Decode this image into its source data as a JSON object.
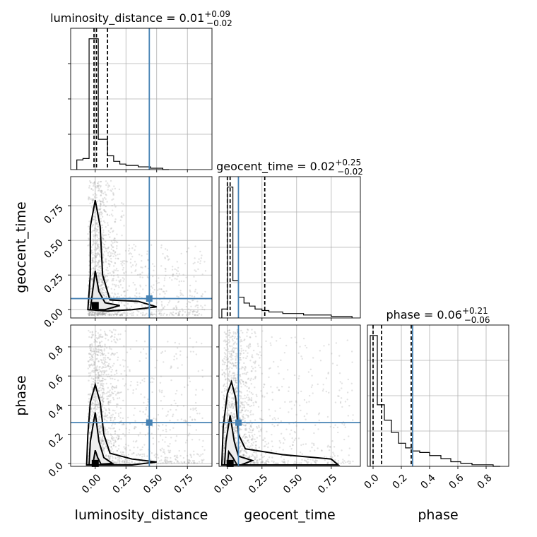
{
  "chart_data": [
    {
      "type": "histogram",
      "parameter": "luminosity_distance",
      "title": "luminosity_distance = 0.01",
      "title_sup": "+0.09",
      "title_sub": "−0.02",
      "xlim": [
        -0.2,
        0.95
      ],
      "bin_edges": [
        -0.15,
        -0.1,
        -0.05,
        -0.0125,
        0.025,
        0.0625,
        0.1,
        0.15,
        0.2,
        0.25,
        0.3,
        0.35,
        0.4,
        0.45,
        0.5,
        0.55,
        0.6
      ],
      "counts": [
        7,
        8,
        95,
        95,
        22,
        22,
        10,
        6,
        4,
        3,
        3,
        2,
        2,
        1,
        1,
        0
      ],
      "quantiles": [
        -0.01,
        0.01,
        0.1
      ],
      "truth": 0.44
    },
    {
      "type": "scatter-contour",
      "xparam": "luminosity_distance",
      "yparam": "geocent_time",
      "xlim": [
        -0.2,
        0.95
      ],
      "ylim": [
        -0.06,
        0.96
      ],
      "yticks": [
        0.0,
        0.25,
        0.5,
        0.75
      ],
      "ytick_labels": [
        "0.00",
        "0.25",
        "0.50",
        "0.75"
      ],
      "ylabel": "geocent_time",
      "truth": [
        0.44,
        0.08
      ],
      "peak": [
        0.0,
        0.03
      ]
    },
    {
      "type": "histogram",
      "parameter": "geocent_time",
      "title": "geocent_time = 0.02",
      "title_sup": "+0.25",
      "title_sub": "−0.02",
      "xlim": [
        -0.06,
        0.96
      ],
      "bin_edges": [
        -0.04,
        0.0,
        0.04,
        0.08,
        0.12,
        0.16,
        0.2,
        0.25,
        0.3,
        0.35,
        0.4,
        0.45,
        0.5,
        0.55,
        0.6,
        0.65,
        0.7,
        0.75,
        0.8,
        0.9
      ],
      "counts": [
        6,
        88,
        25,
        14,
        10,
        8,
        6,
        5,
        4,
        4,
        3,
        3,
        3,
        2,
        2,
        2,
        2,
        1,
        1
      ],
      "quantiles": [
        0.0,
        0.02,
        0.27
      ],
      "truth": 0.08
    },
    {
      "type": "scatter-contour",
      "xparam": "luminosity_distance",
      "yparam": "phase",
      "xlim": [
        -0.2,
        0.95
      ],
      "ylim": [
        -0.02,
        0.95
      ],
      "xticks": [
        0.0,
        0.25,
        0.5,
        0.75
      ],
      "xtick_labels": [
        "0.00",
        "0.25",
        "0.50",
        "0.75"
      ],
      "yticks": [
        0.0,
        0.2,
        0.4,
        0.6,
        0.8
      ],
      "ytick_labels": [
        "0.0",
        "0.2",
        "0.4",
        "0.6",
        "0.8"
      ],
      "xlabel": "luminosity_distance",
      "ylabel": "phase",
      "truth": [
        0.44,
        0.28
      ],
      "peak": [
        0.0,
        0.0
      ]
    },
    {
      "type": "scatter-contour",
      "xparam": "geocent_time",
      "yparam": "phase",
      "xlim": [
        -0.06,
        0.96
      ],
      "ylim": [
        -0.02,
        0.95
      ],
      "xticks": [
        0.0,
        0.25,
        0.5,
        0.75
      ],
      "xtick_labels": [
        "0.00",
        "0.25",
        "0.50",
        "0.75"
      ],
      "xlabel": "geocent_time",
      "truth": [
        0.08,
        0.28
      ],
      "peak": [
        0.02,
        0.0
      ]
    },
    {
      "type": "histogram",
      "parameter": "phase",
      "title": "phase = 0.06",
      "title_sup": "+0.21",
      "title_sub": "−0.06",
      "xlim": [
        -0.04,
        0.96
      ],
      "xticks": [
        0.0,
        0.2,
        0.4,
        0.6,
        0.8
      ],
      "xtick_labels": [
        "0.0",
        "0.2",
        "0.4",
        "0.6",
        "0.8"
      ],
      "xlabel": "phase",
      "bin_edges": [
        -0.02,
        0.03,
        0.08,
        0.13,
        0.18,
        0.23,
        0.28,
        0.33,
        0.4,
        0.48,
        0.55,
        0.62,
        0.7,
        0.78,
        0.85,
        0.9
      ],
      "counts": [
        85,
        40,
        30,
        22,
        15,
        12,
        10,
        9,
        7,
        5,
        3,
        2,
        1,
        1,
        0
      ],
      "quantiles": [
        0.0,
        0.06,
        0.27
      ],
      "truth": 0.28
    }
  ],
  "colors": {
    "truth": "#4682b4",
    "line": "#000000",
    "grid": "#b0b0b0",
    "scatter": "#9a9a9a"
  }
}
